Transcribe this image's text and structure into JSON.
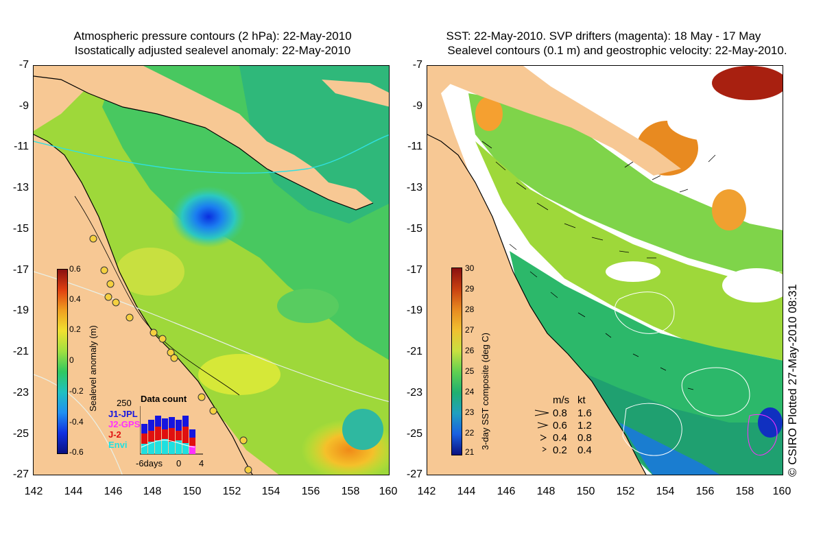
{
  "left": {
    "title1": "Atmospheric pressure contours (2 hPa): 22-May-2010",
    "title2": "Isostatically adjusted sealevel anomaly: 22-May-2010",
    "colorbar_label": "Sealevel anomaly (m)",
    "colorbar_ticks": [
      "0.6",
      "0.4",
      "0.2",
      "0",
      "-0.2",
      "-0.4",
      "-0.6"
    ],
    "data_count": {
      "title": "Data count",
      "max": "250",
      "legend": [
        {
          "name": "J1-JPL",
          "color": "#1515e0"
        },
        {
          "name": "J2-GPS",
          "color": "#ff30ff"
        },
        {
          "name": "J-2",
          "color": "#e01010"
        },
        {
          "name": "Envi",
          "color": "#20e0e0"
        }
      ],
      "xticks": [
        "-6days",
        "0",
        "4"
      ]
    }
  },
  "right": {
    "title1": "SST: 22-May-2010. SVP drifters (magenta): 18 May - 17 May",
    "title2": "Sealevel contours (0.1 m) and geostrophic velocity: 22-May-2010.",
    "colorbar_label": "3-day SST composite (deg C)",
    "colorbar_ticks": [
      "30",
      "29",
      "28",
      "27",
      "26",
      "25",
      "24",
      "23",
      "22",
      "21"
    ],
    "velocity_legend": {
      "header_ms": "m/s",
      "header_kt": "kt",
      "rows": [
        [
          "0.8",
          "1.6"
        ],
        [
          "0.6",
          "1.2"
        ],
        [
          "0.4",
          "0.8"
        ],
        [
          "0.2",
          "0.4"
        ]
      ]
    }
  },
  "axes": {
    "lat_ticks": [
      "-7",
      "-9",
      "-11",
      "-13",
      "-15",
      "-17",
      "-19",
      "-21",
      "-23",
      "-25",
      "-27"
    ],
    "lon_ticks": [
      "142",
      "144",
      "146",
      "148",
      "150",
      "152",
      "154",
      "156",
      "158",
      "160"
    ]
  },
  "copyright": "© CSIRO Plotted 27-May-2010 08:31"
}
